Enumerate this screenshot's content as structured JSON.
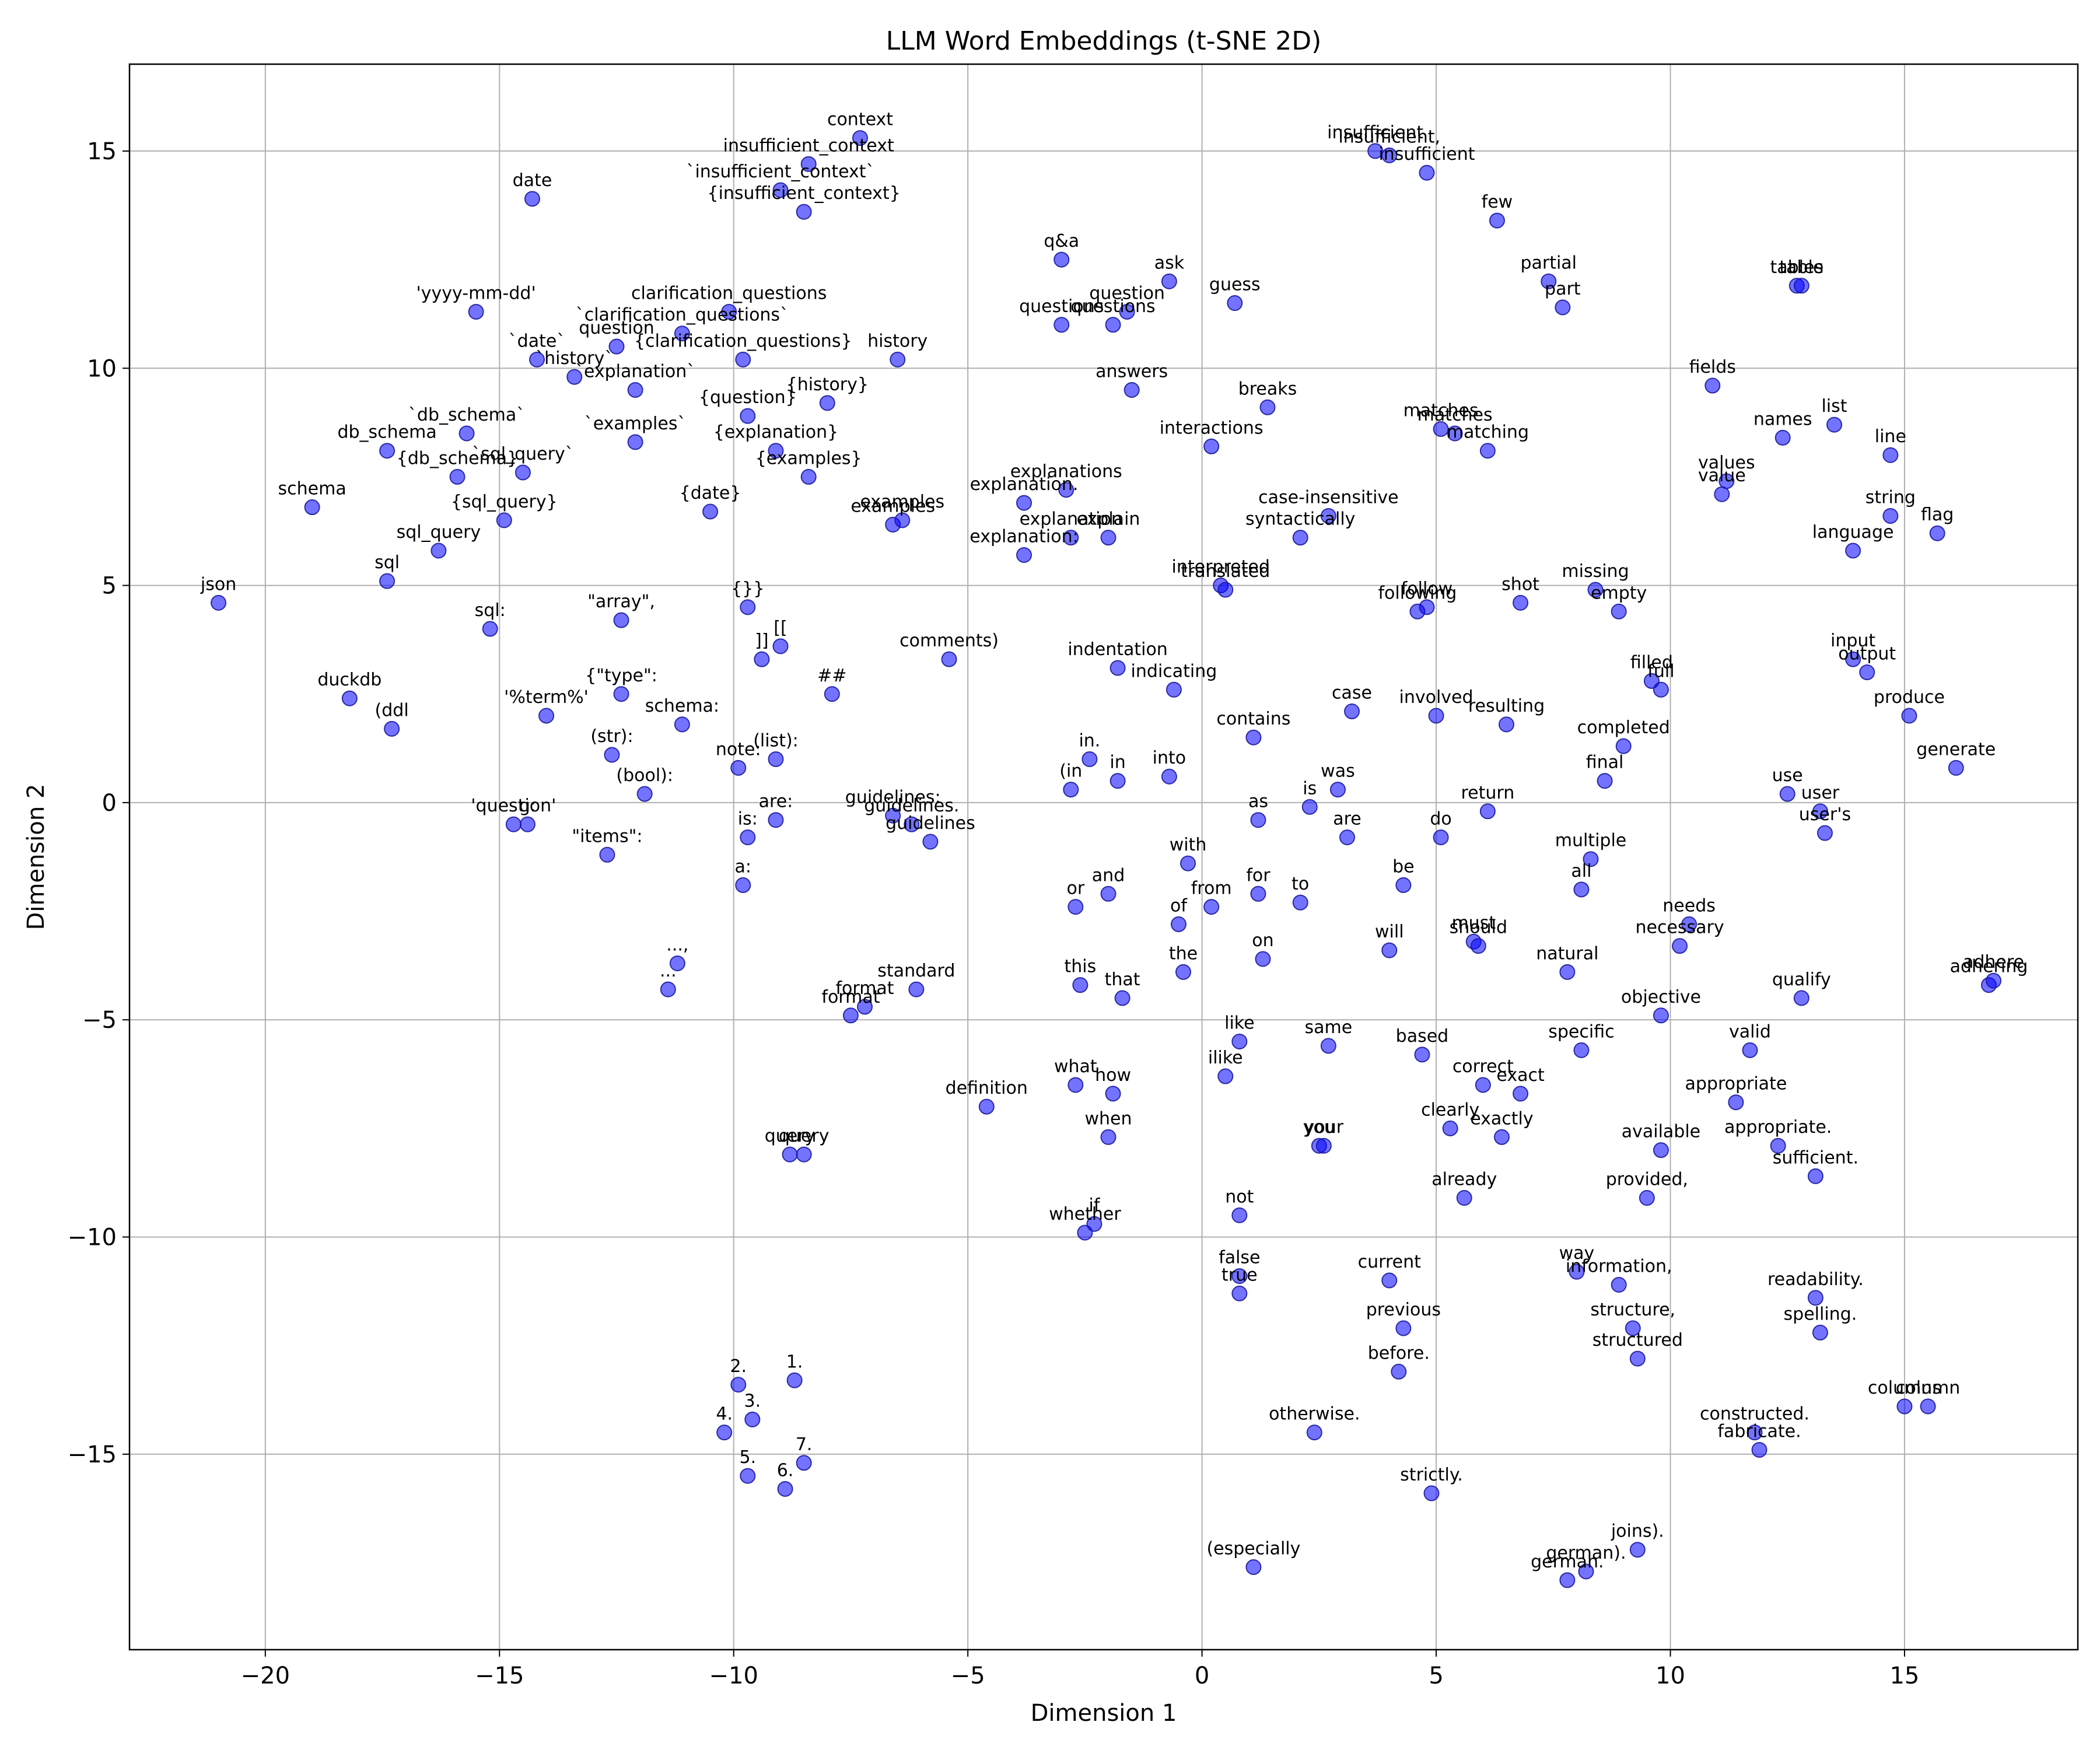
{
  "chart_data": {
    "type": "scatter",
    "title": "LLM Word Embeddings (t-SNE 2D)",
    "xlabel": "Dimension 1",
    "ylabel": "Dimension 2",
    "xlim": [
      -22.9,
      18.7
    ],
    "ylim": [
      -19.5,
      17.0
    ],
    "xticks": [
      -20,
      -15,
      -10,
      -5,
      0,
      5,
      10,
      15
    ],
    "yticks": [
      -15,
      -10,
      -5,
      0,
      5,
      10,
      15
    ],
    "grid": true,
    "point_color": "#0000ff",
    "point_alpha": 0.55,
    "points": [
      {
        "label": "json",
        "x": -21.0,
        "y": 4.6
      },
      {
        "label": "schema",
        "x": -19.0,
        "y": 6.8
      },
      {
        "label": "duckdb",
        "x": -18.2,
        "y": 2.4
      },
      {
        "label": "db_schema",
        "x": -17.4,
        "y": 8.1
      },
      {
        "label": "sql",
        "x": -17.4,
        "y": 5.1
      },
      {
        "label": "(ddl",
        "x": -17.3,
        "y": 1.7
      },
      {
        "label": "sql_query",
        "x": -16.3,
        "y": 5.8
      },
      {
        "label": "{db_schema}",
        "x": -15.9,
        "y": 7.5
      },
      {
        "label": "`db_schema`",
        "x": -15.7,
        "y": 8.5
      },
      {
        "label": "'yyyy-mm-dd'",
        "x": -15.5,
        "y": 11.3
      },
      {
        "label": "sql:",
        "x": -15.2,
        "y": 4.0
      },
      {
        "label": "{sql_query}",
        "x": -14.9,
        "y": 6.5
      },
      {
        "label": "'question'",
        "x": -14.7,
        "y": -0.5
      },
      {
        "label": "`sql_query`",
        "x": -14.5,
        "y": 7.6
      },
      {
        "label": "g:",
        "x": -14.4,
        "y": -0.5
      },
      {
        "label": "date",
        "x": -14.3,
        "y": 13.9
      },
      {
        "label": "`date`",
        "x": -14.2,
        "y": 10.2
      },
      {
        "label": "'%term%'",
        "x": -14.0,
        "y": 2.0
      },
      {
        "label": "`history`",
        "x": -13.4,
        "y": 9.8
      },
      {
        "label": "(str):",
        "x": -12.6,
        "y": 1.1
      },
      {
        "label": "question",
        "x": -12.5,
        "y": 10.5
      },
      {
        "label": "\"items\":",
        "x": -12.7,
        "y": -1.2
      },
      {
        "label": "{\"type\":",
        "x": -12.4,
        "y": 2.5
      },
      {
        "label": "\"array\",",
        "x": -12.4,
        "y": 4.2
      },
      {
        "label": "`explanation`",
        "x": -12.1,
        "y": 9.5
      },
      {
        "label": "(bool):",
        "x": -11.9,
        "y": 0.2
      },
      {
        "label": "`examples`",
        "x": -12.1,
        "y": 8.3
      },
      {
        "label": "...",
        "x": -11.4,
        "y": -4.3
      },
      {
        "label": "...,",
        "x": -11.2,
        "y": -3.7
      },
      {
        "label": "`clarification_questions`",
        "x": -11.1,
        "y": 10.8
      },
      {
        "label": "schema:",
        "x": -11.1,
        "y": 1.8
      },
      {
        "label": "{date}",
        "x": -10.5,
        "y": 6.7
      },
      {
        "label": "4.",
        "x": -10.2,
        "y": -14.5
      },
      {
        "label": "clarification_questions",
        "x": -10.1,
        "y": 11.3
      },
      {
        "label": "2.",
        "x": -9.9,
        "y": -13.4
      },
      {
        "label": "note:",
        "x": -9.9,
        "y": 0.8
      },
      {
        "label": "a:",
        "x": -9.8,
        "y": -1.9
      },
      {
        "label": "{clarification_questions}",
        "x": -9.8,
        "y": 10.2
      },
      {
        "label": "{question}",
        "x": -9.7,
        "y": 8.9
      },
      {
        "label": "{}}",
        "x": -9.7,
        "y": 4.5
      },
      {
        "label": "5.",
        "x": -9.7,
        "y": -15.5
      },
      {
        "label": "is:",
        "x": -9.7,
        "y": -0.8
      },
      {
        "label": "3.",
        "x": -9.6,
        "y": -14.2
      },
      {
        "label": "]]",
        "x": -9.4,
        "y": 3.3
      },
      {
        "label": "(list):",
        "x": -9.1,
        "y": 1.0
      },
      {
        "label": "{explanation}",
        "x": -9.1,
        "y": 8.1
      },
      {
        "label": "are:",
        "x": -9.1,
        "y": -0.4
      },
      {
        "label": "`insufficient_context`",
        "x": -9.0,
        "y": 14.1
      },
      {
        "label": "[[",
        "x": -9.0,
        "y": 3.6
      },
      {
        "label": "6.",
        "x": -8.9,
        "y": -15.8
      },
      {
        "label": "query",
        "x": -8.8,
        "y": -8.1
      },
      {
        "label": "1.",
        "x": -8.7,
        "y": -13.3
      },
      {
        "label": "{insufficient_context}",
        "x": -8.5,
        "y": 13.6
      },
      {
        "label": "7.",
        "x": -8.5,
        "y": -15.2
      },
      {
        "label": "query",
        "x": -8.5,
        "y": -8.1
      },
      {
        "label": "insufficient_context",
        "x": -8.4,
        "y": 14.7
      },
      {
        "label": "{examples}",
        "x": -8.4,
        "y": 7.5
      },
      {
        "label": "{history}",
        "x": -8.0,
        "y": 9.2
      },
      {
        "label": "##",
        "x": -7.9,
        "y": 2.5
      },
      {
        "label": "format",
        "x": -7.5,
        "y": -4.9
      },
      {
        "label": "context",
        "x": -7.3,
        "y": 15.3
      },
      {
        "label": "format",
        "x": -7.2,
        "y": -4.7
      },
      {
        "label": "guidelines:",
        "x": -6.6,
        "y": -0.3
      },
      {
        "label": "examples",
        "x": -6.6,
        "y": 6.4
      },
      {
        "label": "examples",
        "x": -6.4,
        "y": 6.5
      },
      {
        "label": "history",
        "x": -6.5,
        "y": 10.2
      },
      {
        "label": "guidelines.",
        "x": -6.2,
        "y": -0.5
      },
      {
        "label": "standard",
        "x": -6.1,
        "y": -4.3
      },
      {
        "label": "guidelines",
        "x": -5.8,
        "y": -0.9
      },
      {
        "label": "comments)",
        "x": -5.4,
        "y": 3.3
      },
      {
        "label": "definition",
        "x": -4.6,
        "y": -7.0
      },
      {
        "label": "explanation:",
        "x": -3.8,
        "y": 5.7
      },
      {
        "label": "explanation.",
        "x": -3.8,
        "y": 6.9
      },
      {
        "label": "q&a",
        "x": -3.0,
        "y": 12.5
      },
      {
        "label": "questions",
        "x": -3.0,
        "y": 11.0
      },
      {
        "label": "explanations",
        "x": -2.9,
        "y": 7.2
      },
      {
        "label": "explanation",
        "x": -2.8,
        "y": 6.1
      },
      {
        "label": "(in",
        "x": -2.8,
        "y": 0.3
      },
      {
        "label": "or",
        "x": -2.7,
        "y": -2.4
      },
      {
        "label": "what",
        "x": -2.7,
        "y": -6.5
      },
      {
        "label": "this",
        "x": -2.6,
        "y": -4.2
      },
      {
        "label": "whether",
        "x": -2.5,
        "y": -9.9
      },
      {
        "label": "in.",
        "x": -2.4,
        "y": 1.0
      },
      {
        "label": "if",
        "x": -2.3,
        "y": -9.7
      },
      {
        "label": "and",
        "x": -2.0,
        "y": -2.1
      },
      {
        "label": "when",
        "x": -2.0,
        "y": -7.7
      },
      {
        "label": "explain",
        "x": -2.0,
        "y": 6.1
      },
      {
        "label": "questions",
        "x": -1.9,
        "y": 11.0
      },
      {
        "label": "how",
        "x": -1.9,
        "y": -6.7
      },
      {
        "label": "indentation",
        "x": -1.8,
        "y": 3.1
      },
      {
        "label": "in",
        "x": -1.8,
        "y": 0.5
      },
      {
        "label": "that",
        "x": -1.7,
        "y": -4.5
      },
      {
        "label": "question",
        "x": -1.6,
        "y": 11.3
      },
      {
        "label": "answers",
        "x": -1.5,
        "y": 9.5
      },
      {
        "label": "ask",
        "x": -0.7,
        "y": 12.0
      },
      {
        "label": "into",
        "x": -0.7,
        "y": 0.6
      },
      {
        "label": "indicating",
        "x": -0.6,
        "y": 2.6
      },
      {
        "label": "of",
        "x": -0.5,
        "y": -2.8
      },
      {
        "label": "the",
        "x": -0.4,
        "y": -3.9
      },
      {
        "label": "with",
        "x": -0.3,
        "y": -1.4
      },
      {
        "label": "from",
        "x": 0.2,
        "y": -2.4
      },
      {
        "label": "interactions",
        "x": 0.2,
        "y": 8.2
      },
      {
        "label": "interpreted",
        "x": 0.4,
        "y": 5.0
      },
      {
        "label": "translated",
        "x": 0.5,
        "y": 4.9
      },
      {
        "label": "ilike",
        "x": 0.5,
        "y": -6.3
      },
      {
        "label": "guess",
        "x": 0.7,
        "y": 11.5
      },
      {
        "label": "false",
        "x": 0.8,
        "y": -10.9
      },
      {
        "label": "true",
        "x": 0.8,
        "y": -11.3
      },
      {
        "label": "like",
        "x": 0.8,
        "y": -5.5
      },
      {
        "label": "not",
        "x": 0.8,
        "y": -9.5
      },
      {
        "label": "(especially",
        "x": 1.1,
        "y": -17.6
      },
      {
        "label": "contains",
        "x": 1.1,
        "y": 1.5
      },
      {
        "label": "as",
        "x": 1.2,
        "y": -0.4
      },
      {
        "label": "for",
        "x": 1.2,
        "y": -2.1
      },
      {
        "label": "on",
        "x": 1.3,
        "y": -3.6
      },
      {
        "label": "breaks",
        "x": 1.4,
        "y": 9.1
      },
      {
        "label": "syntactically",
        "x": 2.1,
        "y": 6.1
      },
      {
        "label": "to",
        "x": 2.1,
        "y": -2.3
      },
      {
        "label": "is",
        "x": 2.3,
        "y": -0.1
      },
      {
        "label": "otherwise.",
        "x": 2.4,
        "y": -14.5
      },
      {
        "label": "you",
        "x": 2.5,
        "y": -7.9
      },
      {
        "label": "your",
        "x": 2.6,
        "y": -7.9
      },
      {
        "label": "case-insensitive",
        "x": 2.7,
        "y": 6.6
      },
      {
        "label": "same",
        "x": 2.7,
        "y": -5.6
      },
      {
        "label": "was",
        "x": 2.9,
        "y": 0.3
      },
      {
        "label": "are",
        "x": 3.1,
        "y": -0.8
      },
      {
        "label": "case",
        "x": 3.2,
        "y": 2.1
      },
      {
        "label": "insufficient",
        "x": 3.7,
        "y": 15.0
      },
      {
        "label": "current",
        "x": 4.0,
        "y": -11.0
      },
      {
        "label": "will",
        "x": 4.0,
        "y": -3.4
      },
      {
        "label": "insufficient,",
        "x": 4.0,
        "y": 14.9
      },
      {
        "label": "previous",
        "x": 4.3,
        "y": -12.1
      },
      {
        "label": "before.",
        "x": 4.2,
        "y": -13.1
      },
      {
        "label": "be",
        "x": 4.3,
        "y": -1.9
      },
      {
        "label": "following",
        "x": 4.6,
        "y": 4.4
      },
      {
        "label": "follow",
        "x": 4.8,
        "y": 4.5
      },
      {
        "label": "based",
        "x": 4.7,
        "y": -5.8
      },
      {
        "label": "insufficient",
        "x": 4.8,
        "y": 14.5
      },
      {
        "label": "strictly.",
        "x": 4.9,
        "y": -15.9
      },
      {
        "label": "involved",
        "x": 5.0,
        "y": 2.0
      },
      {
        "label": "do",
        "x": 5.1,
        "y": -0.8
      },
      {
        "label": "matches",
        "x": 5.1,
        "y": 8.6
      },
      {
        "label": "clearly",
        "x": 5.3,
        "y": -7.5
      },
      {
        "label": "matches",
        "x": 5.4,
        "y": 8.5
      },
      {
        "label": "already",
        "x": 5.6,
        "y": -9.1
      },
      {
        "label": "must",
        "x": 5.8,
        "y": -3.2
      },
      {
        "label": "should",
        "x": 5.9,
        "y": -3.3
      },
      {
        "label": "correct",
        "x": 6.0,
        "y": -6.5
      },
      {
        "label": "return",
        "x": 6.1,
        "y": -0.2
      },
      {
        "label": "matching",
        "x": 6.1,
        "y": 8.1
      },
      {
        "label": "few",
        "x": 6.3,
        "y": 13.4
      },
      {
        "label": "exactly",
        "x": 6.4,
        "y": -7.7
      },
      {
        "label": "resulting",
        "x": 6.5,
        "y": 1.8
      },
      {
        "label": "exact",
        "x": 6.8,
        "y": -6.7
      },
      {
        "label": "shot",
        "x": 6.8,
        "y": 4.6
      },
      {
        "label": "natural",
        "x": 7.8,
        "y": -3.9
      },
      {
        "label": "partial",
        "x": 7.4,
        "y": 12.0
      },
      {
        "label": "part",
        "x": 7.7,
        "y": 11.4
      },
      {
        "label": "german.",
        "x": 7.8,
        "y": -17.9
      },
      {
        "label": "way",
        "x": 8.0,
        "y": -10.8
      },
      {
        "label": "all",
        "x": 8.1,
        "y": -2.0
      },
      {
        "label": "specific",
        "x": 8.1,
        "y": -5.7
      },
      {
        "label": "german).",
        "x": 8.2,
        "y": -17.7
      },
      {
        "label": "multiple",
        "x": 8.3,
        "y": -1.3
      },
      {
        "label": "missing",
        "x": 8.4,
        "y": 4.9
      },
      {
        "label": "final",
        "x": 8.6,
        "y": 0.5
      },
      {
        "label": "information,",
        "x": 8.9,
        "y": -11.1
      },
      {
        "label": "completed",
        "x": 9.0,
        "y": 1.3
      },
      {
        "label": "empty",
        "x": 8.9,
        "y": 4.4
      },
      {
        "label": "structure,",
        "x": 9.2,
        "y": -12.1
      },
      {
        "label": "joins).",
        "x": 9.3,
        "y": -17.2
      },
      {
        "label": "structured",
        "x": 9.3,
        "y": -12.8
      },
      {
        "label": "provided,",
        "x": 9.5,
        "y": -9.1
      },
      {
        "label": "filled",
        "x": 9.6,
        "y": 2.8
      },
      {
        "label": "full",
        "x": 9.8,
        "y": 2.6
      },
      {
        "label": "available",
        "x": 9.8,
        "y": -8.0
      },
      {
        "label": "objective",
        "x": 9.8,
        "y": -4.9
      },
      {
        "label": "necessary",
        "x": 10.2,
        "y": -3.3
      },
      {
        "label": "needs",
        "x": 10.4,
        "y": -2.8
      },
      {
        "label": "fields",
        "x": 10.9,
        "y": 9.6
      },
      {
        "label": "value",
        "x": 11.1,
        "y": 7.1
      },
      {
        "label": "values",
        "x": 11.2,
        "y": 7.4
      },
      {
        "label": "appropriate",
        "x": 11.4,
        "y": -6.9
      },
      {
        "label": "valid",
        "x": 11.7,
        "y": -5.7
      },
      {
        "label": "constructed.",
        "x": 11.8,
        "y": -14.5
      },
      {
        "label": "fabricate.",
        "x": 11.9,
        "y": -14.9
      },
      {
        "label": "appropriate.",
        "x": 12.3,
        "y": -7.9
      },
      {
        "label": "names",
        "x": 12.4,
        "y": 8.4
      },
      {
        "label": "use",
        "x": 12.5,
        "y": 0.2
      },
      {
        "label": "tables",
        "x": 12.7,
        "y": 11.9
      },
      {
        "label": "table",
        "x": 12.8,
        "y": 11.9
      },
      {
        "label": "qualify",
        "x": 12.8,
        "y": -4.5
      },
      {
        "label": "sufficient.",
        "x": 13.1,
        "y": -8.6
      },
      {
        "label": "user",
        "x": 13.2,
        "y": -0.2
      },
      {
        "label": "readability.",
        "x": 13.1,
        "y": -11.4
      },
      {
        "label": "spelling.",
        "x": 13.2,
        "y": -12.2
      },
      {
        "label": "user's",
        "x": 13.3,
        "y": -0.7
      },
      {
        "label": "list",
        "x": 13.5,
        "y": 8.7
      },
      {
        "label": "input",
        "x": 13.9,
        "y": 3.3
      },
      {
        "label": "language",
        "x": 13.9,
        "y": 5.8
      },
      {
        "label": "output",
        "x": 14.2,
        "y": 3.0
      },
      {
        "label": "string",
        "x": 14.7,
        "y": 6.6
      },
      {
        "label": "line",
        "x": 14.7,
        "y": 8.0
      },
      {
        "label": "columns",
        "x": 15.0,
        "y": -13.9
      },
      {
        "label": "produce",
        "x": 15.1,
        "y": 2.0
      },
      {
        "label": "column",
        "x": 15.5,
        "y": -13.9
      },
      {
        "label": "flag",
        "x": 15.7,
        "y": 6.2
      },
      {
        "label": "generate",
        "x": 16.1,
        "y": 0.8
      },
      {
        "label": "adhering",
        "x": 16.8,
        "y": -4.2
      },
      {
        "label": "adhere",
        "x": 16.9,
        "y": -4.1
      }
    ]
  }
}
